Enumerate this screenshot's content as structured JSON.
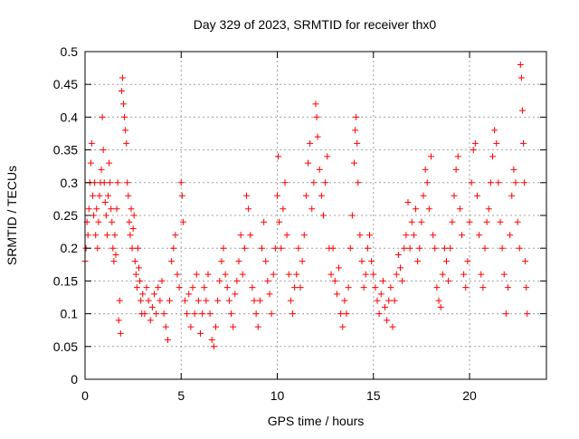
{
  "chart_data": {
    "type": "scatter",
    "title": "Day 329 of 2023, SRMTID for receiver thx0",
    "xlabel": "GPS time / hours",
    "ylabel": "SRMTID / TECUs",
    "xlim": [
      0,
      24
    ],
    "ylim": [
      0,
      0.5
    ],
    "xticks": [
      0,
      5,
      10,
      15,
      20
    ],
    "yticks": [
      0,
      0.05,
      0.1,
      0.15,
      0.2,
      0.25,
      0.3,
      0.35,
      0.4,
      0.45,
      0.5
    ],
    "grid": true,
    "marker": "+",
    "color": "#ff0000",
    "series": [
      {
        "points": [
          [
            0.0,
            0.18
          ],
          [
            0.05,
            0.2
          ],
          [
            0.1,
            0.24
          ],
          [
            0.15,
            0.22
          ],
          [
            0.2,
            0.26
          ],
          [
            0.25,
            0.3
          ],
          [
            0.3,
            0.33
          ],
          [
            0.35,
            0.36
          ],
          [
            0.4,
            0.28
          ],
          [
            0.45,
            0.25
          ],
          [
            0.5,
            0.3
          ],
          [
            0.55,
            0.22
          ],
          [
            0.6,
            0.26
          ],
          [
            0.65,
            0.2
          ],
          [
            0.7,
            0.24
          ],
          [
            0.75,
            0.28
          ],
          [
            0.8,
            0.3
          ],
          [
            0.85,
            0.32
          ],
          [
            0.9,
            0.4
          ],
          [
            0.95,
            0.35
          ],
          [
            1.0,
            0.3
          ],
          [
            1.05,
            0.27
          ],
          [
            1.1,
            0.25
          ],
          [
            1.15,
            0.22
          ],
          [
            1.2,
            0.28
          ],
          [
            1.25,
            0.33
          ],
          [
            1.3,
            0.3
          ],
          [
            1.35,
            0.26
          ],
          [
            1.4,
            0.24
          ],
          [
            1.45,
            0.2
          ],
          [
            1.5,
            0.18
          ],
          [
            1.55,
            0.22
          ],
          [
            1.6,
            0.19
          ],
          [
            1.65,
            0.26
          ],
          [
            1.7,
            0.3
          ],
          [
            1.75,
            0.09
          ],
          [
            1.8,
            0.12
          ],
          [
            1.85,
            0.07
          ],
          [
            1.9,
            0.44
          ],
          [
            1.95,
            0.46
          ],
          [
            2.0,
            0.42
          ],
          [
            2.05,
            0.4
          ],
          [
            2.1,
            0.38
          ],
          [
            2.15,
            0.36
          ],
          [
            2.2,
            0.3
          ],
          [
            2.25,
            0.28
          ],
          [
            2.3,
            0.24
          ],
          [
            2.35,
            0.22
          ],
          [
            2.4,
            0.26
          ],
          [
            2.45,
            0.2
          ],
          [
            2.5,
            0.23
          ],
          [
            2.55,
            0.25
          ],
          [
            2.6,
            0.18
          ],
          [
            2.65,
            0.16
          ],
          [
            2.7,
            0.14
          ],
          [
            2.75,
            0.2
          ],
          [
            2.8,
            0.17
          ],
          [
            2.85,
            0.15
          ],
          [
            2.9,
            0.12
          ],
          [
            2.95,
            0.1
          ],
          [
            3.0,
            0.13
          ],
          [
            3.1,
            0.1
          ],
          [
            3.2,
            0.14
          ],
          [
            3.3,
            0.12
          ],
          [
            3.4,
            0.09
          ],
          [
            3.5,
            0.11
          ],
          [
            3.6,
            0.13
          ],
          [
            3.7,
            0.1
          ],
          [
            3.8,
            0.14
          ],
          [
            3.9,
            0.12
          ],
          [
            4.0,
            0.15
          ],
          [
            4.1,
            0.1
          ],
          [
            4.2,
            0.08
          ],
          [
            4.3,
            0.06
          ],
          [
            4.4,
            0.12
          ],
          [
            4.5,
            0.18
          ],
          [
            4.6,
            0.2
          ],
          [
            4.7,
            0.22
          ],
          [
            4.8,
            0.16
          ],
          [
            4.9,
            0.14
          ],
          [
            5.0,
            0.3
          ],
          [
            5.05,
            0.28
          ],
          [
            5.1,
            0.24
          ],
          [
            5.2,
            0.12
          ],
          [
            5.3,
            0.1
          ],
          [
            5.4,
            0.13
          ],
          [
            5.5,
            0.08
          ],
          [
            5.6,
            0.14
          ],
          [
            5.7,
            0.1
          ],
          [
            5.8,
            0.16
          ],
          [
            5.9,
            0.12
          ],
          [
            6.0,
            0.07
          ],
          [
            6.1,
            0.1
          ],
          [
            6.2,
            0.14
          ],
          [
            6.3,
            0.12
          ],
          [
            6.4,
            0.16
          ],
          [
            6.5,
            0.1
          ],
          [
            6.6,
            0.06
          ],
          [
            6.7,
            0.05
          ],
          [
            6.8,
            0.08
          ],
          [
            6.9,
            0.12
          ],
          [
            7.0,
            0.15
          ],
          [
            7.1,
            0.18
          ],
          [
            7.2,
            0.2
          ],
          [
            7.3,
            0.16
          ],
          [
            7.4,
            0.14
          ],
          [
            7.5,
            0.12
          ],
          [
            7.6,
            0.1
          ],
          [
            7.7,
            0.08
          ],
          [
            7.8,
            0.13
          ],
          [
            7.9,
            0.15
          ],
          [
            8.0,
            0.18
          ],
          [
            8.1,
            0.22
          ],
          [
            8.2,
            0.16
          ],
          [
            8.3,
            0.2
          ],
          [
            8.4,
            0.28
          ],
          [
            8.5,
            0.26
          ],
          [
            8.6,
            0.22
          ],
          [
            8.7,
            0.14
          ],
          [
            8.8,
            0.12
          ],
          [
            8.9,
            0.1
          ],
          [
            9.0,
            0.08
          ],
          [
            9.1,
            0.12
          ],
          [
            9.2,
            0.2
          ],
          [
            9.3,
            0.24
          ],
          [
            9.4,
            0.18
          ],
          [
            9.5,
            0.15
          ],
          [
            9.6,
            0.13
          ],
          [
            9.7,
            0.1
          ],
          [
            9.8,
            0.16
          ],
          [
            9.9,
            0.2
          ],
          [
            10.0,
            0.28
          ],
          [
            10.05,
            0.34
          ],
          [
            10.1,
            0.24
          ],
          [
            10.2,
            0.2
          ],
          [
            10.3,
            0.26
          ],
          [
            10.4,
            0.3
          ],
          [
            10.5,
            0.22
          ],
          [
            10.6,
            0.16
          ],
          [
            10.7,
            0.12
          ],
          [
            10.8,
            0.1
          ],
          [
            10.9,
            0.14
          ],
          [
            11.0,
            0.16
          ],
          [
            11.1,
            0.2
          ],
          [
            11.2,
            0.14
          ],
          [
            11.3,
            0.18
          ],
          [
            11.4,
            0.22
          ],
          [
            11.5,
            0.28
          ],
          [
            11.6,
            0.33
          ],
          [
            11.7,
            0.36
          ],
          [
            11.8,
            0.26
          ],
          [
            11.9,
            0.3
          ],
          [
            12.0,
            0.42
          ],
          [
            12.05,
            0.4
          ],
          [
            12.1,
            0.37
          ],
          [
            12.2,
            0.32
          ],
          [
            12.3,
            0.28
          ],
          [
            12.4,
            0.25
          ],
          [
            12.5,
            0.3
          ],
          [
            12.6,
            0.34
          ],
          [
            12.7,
            0.2
          ],
          [
            12.8,
            0.16
          ],
          [
            12.9,
            0.2
          ],
          [
            13.0,
            0.15
          ],
          [
            13.1,
            0.13
          ],
          [
            13.2,
            0.17
          ],
          [
            13.3,
            0.1
          ],
          [
            13.4,
            0.08
          ],
          [
            13.5,
            0.12
          ],
          [
            13.6,
            0.1
          ],
          [
            13.7,
            0.14
          ],
          [
            13.8,
            0.2
          ],
          [
            13.9,
            0.25
          ],
          [
            14.0,
            0.33
          ],
          [
            14.05,
            0.38
          ],
          [
            14.1,
            0.4
          ],
          [
            14.15,
            0.36
          ],
          [
            14.2,
            0.3
          ],
          [
            14.3,
            0.22
          ],
          [
            14.4,
            0.18
          ],
          [
            14.5,
            0.14
          ],
          [
            14.6,
            0.16
          ],
          [
            14.7,
            0.2
          ],
          [
            14.8,
            0.22
          ],
          [
            14.9,
            0.18
          ],
          [
            15.0,
            0.16
          ],
          [
            15.1,
            0.14
          ],
          [
            15.2,
            0.12
          ],
          [
            15.3,
            0.1
          ],
          [
            15.4,
            0.13
          ],
          [
            15.5,
            0.15
          ],
          [
            15.6,
            0.11
          ],
          [
            15.7,
            0.09
          ],
          [
            15.8,
            0.12
          ],
          [
            15.9,
            0.14
          ],
          [
            16.0,
            0.08
          ],
          [
            16.1,
            0.12
          ],
          [
            16.2,
            0.16
          ],
          [
            16.3,
            0.19
          ],
          [
            16.4,
            0.17
          ],
          [
            16.5,
            0.15
          ],
          [
            16.6,
            0.2
          ],
          [
            16.7,
            0.22
          ],
          [
            16.8,
            0.27
          ],
          [
            16.9,
            0.2
          ],
          [
            17.0,
            0.24
          ],
          [
            17.1,
            0.22
          ],
          [
            17.2,
            0.26
          ],
          [
            17.3,
            0.18
          ],
          [
            17.4,
            0.2
          ],
          [
            17.5,
            0.24
          ],
          [
            17.6,
            0.28
          ],
          [
            17.7,
            0.32
          ],
          [
            17.8,
            0.3
          ],
          [
            17.9,
            0.26
          ],
          [
            18.0,
            0.34
          ],
          [
            18.1,
            0.22
          ],
          [
            18.2,
            0.2
          ],
          [
            18.3,
            0.14
          ],
          [
            18.4,
            0.12
          ],
          [
            18.5,
            0.11
          ],
          [
            18.6,
            0.16
          ],
          [
            18.7,
            0.2
          ],
          [
            18.8,
            0.18
          ],
          [
            18.9,
            0.15
          ],
          [
            19.0,
            0.2
          ],
          [
            19.1,
            0.24
          ],
          [
            19.2,
            0.28
          ],
          [
            19.3,
            0.32
          ],
          [
            19.4,
            0.34
          ],
          [
            19.5,
            0.26
          ],
          [
            19.6,
            0.22
          ],
          [
            19.7,
            0.16
          ],
          [
            19.8,
            0.14
          ],
          [
            19.9,
            0.18
          ],
          [
            20.0,
            0.24
          ],
          [
            20.1,
            0.3
          ],
          [
            20.2,
            0.35
          ],
          [
            20.3,
            0.36
          ],
          [
            20.4,
            0.28
          ],
          [
            20.5,
            0.22
          ],
          [
            20.6,
            0.16
          ],
          [
            20.7,
            0.14
          ],
          [
            20.8,
            0.2
          ],
          [
            20.9,
            0.24
          ],
          [
            21.0,
            0.26
          ],
          [
            21.1,
            0.3
          ],
          [
            21.2,
            0.34
          ],
          [
            21.3,
            0.38
          ],
          [
            21.4,
            0.36
          ],
          [
            21.5,
            0.3
          ],
          [
            21.6,
            0.24
          ],
          [
            21.7,
            0.2
          ],
          [
            21.8,
            0.16
          ],
          [
            21.9,
            0.1
          ],
          [
            22.0,
            0.14
          ],
          [
            22.1,
            0.22
          ],
          [
            22.2,
            0.28
          ],
          [
            22.3,
            0.32
          ],
          [
            22.4,
            0.3
          ],
          [
            22.5,
            0.24
          ],
          [
            22.6,
            0.2
          ],
          [
            22.65,
            0.48
          ],
          [
            22.7,
            0.46
          ],
          [
            22.75,
            0.41
          ],
          [
            22.8,
            0.36
          ],
          [
            22.85,
            0.3
          ],
          [
            22.9,
            0.18
          ],
          [
            22.95,
            0.14
          ],
          [
            23.0,
            0.1
          ]
        ]
      }
    ]
  }
}
